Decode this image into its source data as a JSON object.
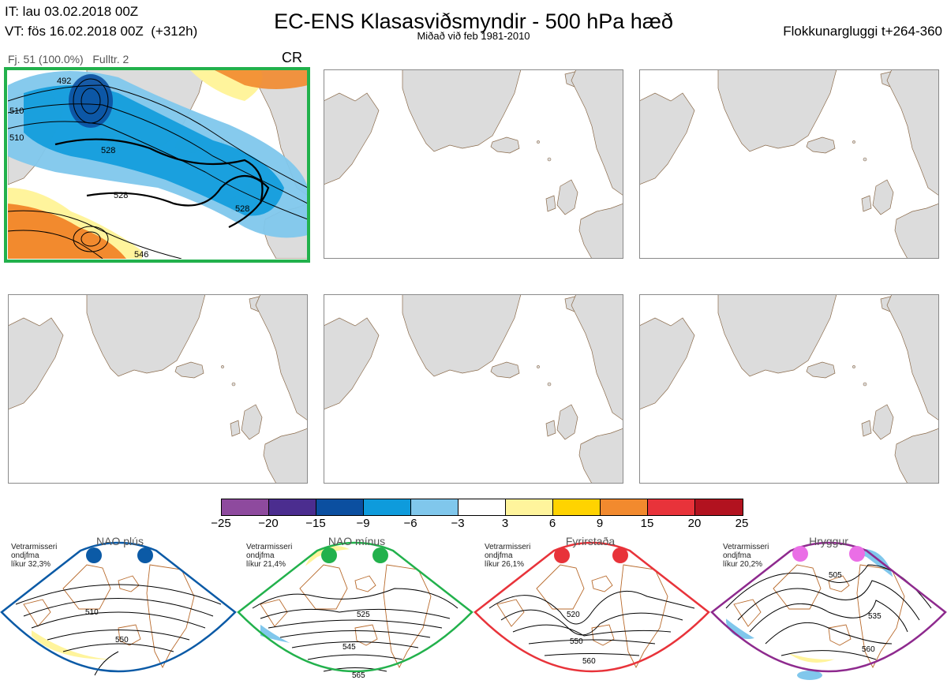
{
  "header": {
    "it_line": "IT: lau 03.02.2018 00Z",
    "vt_line": "VT: fös 16.02.2018 00Z  (+312h)",
    "title": "EC-ENS Klasasviðsmyndir - 500 hPa hæð",
    "subtitle": "Miðað við feb 1981-2010",
    "window": "Flokkunargluggi t+264-360"
  },
  "cluster": {
    "info": "Fj. 51 (100.0%)   Fulltr. 2",
    "code": "CR",
    "contour_labels": [
      "492",
      "510",
      "528",
      "528",
      "528",
      "546",
      "510"
    ]
  },
  "colorbar": {
    "colors": [
      "#8e4a9e",
      "#4b2d8f",
      "#0b4fa0",
      "#0e9bdc",
      "#80c7ec",
      "#ffffff",
      "#fff49c",
      "#ffd300",
      "#f28a2e",
      "#e8333a",
      "#b2121f"
    ],
    "ticks": [
      "−25",
      "−20",
      "−15",
      "−9",
      "−6",
      "−3",
      "3",
      "6",
      "9",
      "15",
      "20",
      "25"
    ]
  },
  "regimes": [
    {
      "name": "NAO plús",
      "info_line1": "Vetrarmisseri",
      "info_line2": "ondjfma",
      "info_line3": "líkur 32,3%",
      "color": "#0b5aa6",
      "labels": [
        "510",
        "550"
      ]
    },
    {
      "name": "NAO mínus",
      "info_line1": "Vetrarmisseri",
      "info_line2": "ondjfma",
      "info_line3": "líkur 21,4%",
      "color": "#22b14c",
      "labels": [
        "525",
        "545",
        "565"
      ]
    },
    {
      "name": "Fyrirstaða",
      "info_line1": "Vetrarmisseri",
      "info_line2": "ondjfma",
      "info_line3": "líkur 26,1%",
      "color": "#e8333a",
      "labels": [
        "520",
        "550",
        "560"
      ]
    },
    {
      "name": "Hryggur",
      "info_line1": "Vetrarmisseri",
      "info_line2": "ondjfma",
      "info_line3": "líkur 20,2%",
      "color": "#8e2a8e",
      "labels": [
        "505",
        "535",
        "560"
      ]
    }
  ]
}
